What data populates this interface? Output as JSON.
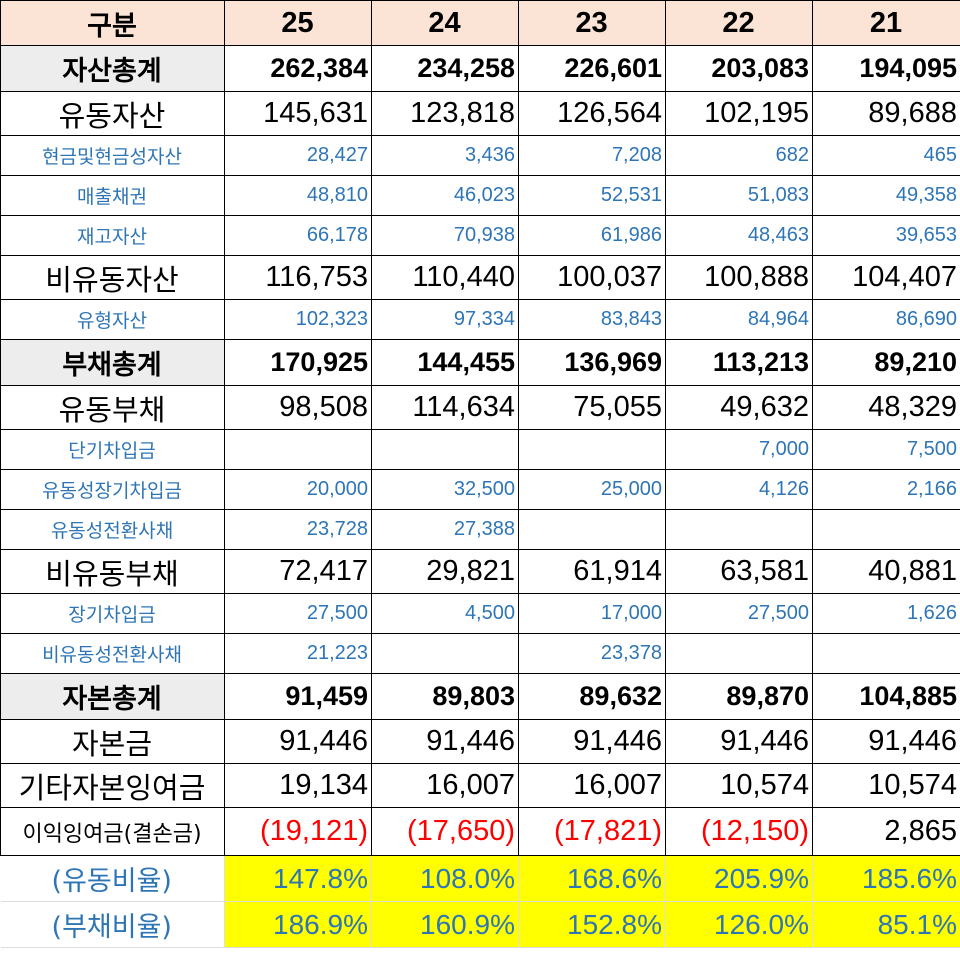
{
  "columns": [
    "구분",
    "25",
    "24",
    "23",
    "22",
    "21"
  ],
  "rows": [
    {
      "type": "total",
      "label": "자산총계",
      "values": [
        "262,384",
        "234,258",
        "226,601",
        "203,083",
        "194,095"
      ]
    },
    {
      "type": "main",
      "label": "유동자산",
      "values": [
        "145,631",
        "123,818",
        "126,564",
        "102,195",
        "89,688"
      ]
    },
    {
      "type": "sub",
      "label": "현금및현금성자산",
      "values": [
        "28,427",
        "3,436",
        "7,208",
        "682",
        "465"
      ]
    },
    {
      "type": "sub",
      "label": "매출채권",
      "values": [
        "48,810",
        "46,023",
        "52,531",
        "51,083",
        "49,358"
      ]
    },
    {
      "type": "sub",
      "label": "재고자산",
      "values": [
        "66,178",
        "70,938",
        "61,986",
        "48,463",
        "39,653"
      ]
    },
    {
      "type": "main",
      "label": "비유동자산",
      "values": [
        "116,753",
        "110,440",
        "100,037",
        "100,888",
        "104,407"
      ]
    },
    {
      "type": "sub",
      "label": "유형자산",
      "values": [
        "102,323",
        "97,334",
        "83,843",
        "84,964",
        "86,690"
      ]
    },
    {
      "type": "total",
      "label": "부채총계",
      "values": [
        "170,925",
        "144,455",
        "136,969",
        "113,213",
        "89,210"
      ]
    },
    {
      "type": "main",
      "label": "유동부채",
      "values": [
        "98,508",
        "114,634",
        "75,055",
        "49,632",
        "48,329"
      ]
    },
    {
      "type": "sub",
      "label": "단기차입금",
      "values": [
        "",
        "",
        "",
        "7,000",
        "7,500"
      ]
    },
    {
      "type": "sub",
      "label": "유동성장기차입금",
      "values": [
        "20,000",
        "32,500",
        "25,000",
        "4,126",
        "2,166"
      ]
    },
    {
      "type": "sub",
      "label": "유동성전환사채",
      "values": [
        "23,728",
        "27,388",
        "",
        "",
        ""
      ]
    },
    {
      "type": "main",
      "label": "비유동부채",
      "values": [
        "72,417",
        "29,821",
        "61,914",
        "63,581",
        "40,881"
      ]
    },
    {
      "type": "sub",
      "label": "장기차입금",
      "values": [
        "27,500",
        "4,500",
        "17,000",
        "27,500",
        "1,626"
      ]
    },
    {
      "type": "sub",
      "label": "비유동성전환사채",
      "values": [
        "21,223",
        "",
        "23,378",
        "",
        ""
      ]
    },
    {
      "type": "total",
      "label": "자본총계",
      "values": [
        "91,459",
        "89,803",
        "89,632",
        "89,870",
        "104,885"
      ]
    },
    {
      "type": "main",
      "label": "자본금",
      "values": [
        "91,446",
        "91,446",
        "91,446",
        "91,446",
        "91,446"
      ]
    },
    {
      "type": "main",
      "label": "기타자본잉여금",
      "values": [
        "19,134",
        "16,007",
        "16,007",
        "10,574",
        "10,574"
      ]
    },
    {
      "type": "retained",
      "label": "이익잉여금(결손금)",
      "values": [
        "(19,121)",
        "(17,650)",
        "(17,821)",
        "(12,150)",
        "2,865"
      ]
    },
    {
      "type": "ratio",
      "label": "(유동비율)",
      "values": [
        "147.8%",
        "108.0%",
        "168.6%",
        "205.9%",
        "185.6%"
      ]
    },
    {
      "type": "ratio",
      "label": "(부채비율)",
      "values": [
        "186.9%",
        "160.9%",
        "152.8%",
        "126.0%",
        "85.1%"
      ]
    }
  ],
  "colors": {
    "header_bg": "#fbe4d5",
    "total_label_bg": "#ededed",
    "sub_text": "#2e75b6",
    "negative_text": "#ff0000",
    "ratio_bg": "#ffff00"
  }
}
